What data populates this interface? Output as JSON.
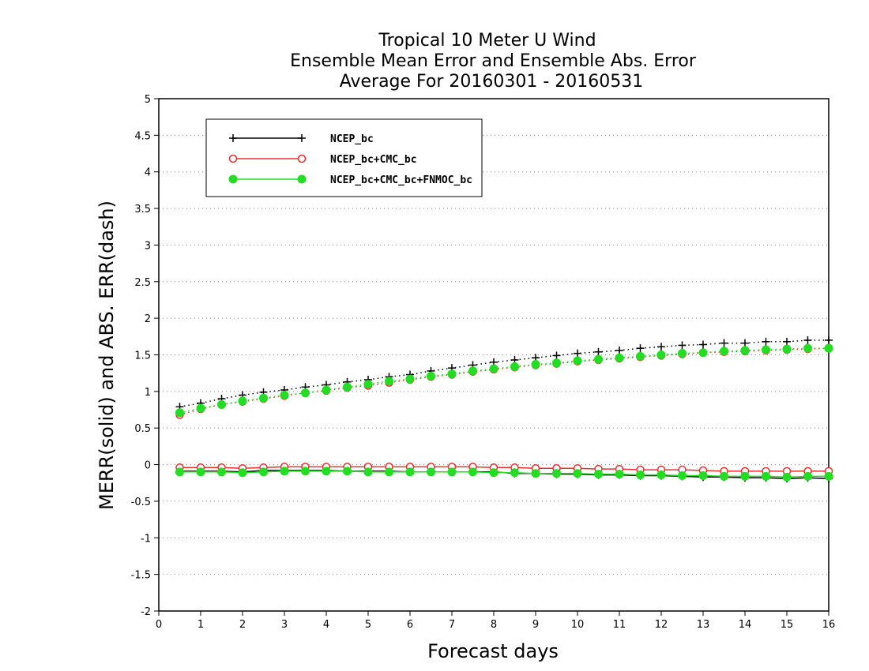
{
  "chart_data": {
    "type": "line",
    "title_lines": [
      "Tropical 10 Meter U Wind",
      "Ensemble Mean Error and Ensemble Abs. Error",
      "Average For 20160301 - 20160531"
    ],
    "xlabel": "Forecast days",
    "ylabel": "MERR(solid) and ABS. ERR(dash)",
    "xlim": [
      0,
      16
    ],
    "ylim": [
      -2,
      5
    ],
    "xticks": [
      0,
      1,
      2,
      3,
      4,
      5,
      6,
      7,
      8,
      9,
      10,
      11,
      12,
      13,
      14,
      15,
      16
    ],
    "xtick_labels": [
      "0",
      "1",
      "2",
      "3",
      "4",
      "5",
      "6",
      "7",
      "8",
      "9",
      "10",
      "11",
      "12",
      "13",
      "14",
      "15",
      "16"
    ],
    "yticks": [
      -2,
      -1.5,
      -1,
      -0.5,
      0,
      0.5,
      1,
      1.5,
      2,
      2.5,
      3,
      3.5,
      4,
      4.5,
      5
    ],
    "ytick_labels": [
      "-2",
      "-1.5",
      "-1",
      "-0.5",
      "0",
      "0.5",
      "1",
      "1.5",
      "2",
      "2.5",
      "3",
      "3.5",
      "4",
      "4.5",
      "5"
    ],
    "grid": "horizontal dotted",
    "legend_position": "top-left",
    "x": [
      0.5,
      1,
      1.5,
      2,
      2.5,
      3,
      3.5,
      4,
      4.5,
      5,
      5.5,
      6,
      6.5,
      7,
      7.5,
      8,
      8.5,
      9,
      9.5,
      10,
      10.5,
      11,
      11.5,
      12,
      12.5,
      13,
      13.5,
      14,
      14.5,
      15,
      15.5,
      16
    ],
    "series": [
      {
        "name": "NCEP_bc",
        "color": "#000000",
        "marker": "plus",
        "merr": [
          -0.09,
          -0.09,
          -0.09,
          -0.1,
          -0.08,
          -0.08,
          -0.08,
          -0.08,
          -0.09,
          -0.09,
          -0.09,
          -0.1,
          -0.1,
          -0.1,
          -0.1,
          -0.1,
          -0.12,
          -0.12,
          -0.13,
          -0.13,
          -0.14,
          -0.14,
          -0.15,
          -0.15,
          -0.16,
          -0.17,
          -0.17,
          -0.18,
          -0.18,
          -0.19,
          -0.18,
          -0.19
        ],
        "abs_err": [
          0.79,
          0.84,
          0.9,
          0.95,
          0.99,
          1.02,
          1.06,
          1.09,
          1.13,
          1.16,
          1.2,
          1.23,
          1.28,
          1.32,
          1.36,
          1.4,
          1.43,
          1.46,
          1.49,
          1.52,
          1.54,
          1.56,
          1.59,
          1.61,
          1.63,
          1.64,
          1.66,
          1.66,
          1.68,
          1.68,
          1.7,
          1.7
        ]
      },
      {
        "name": "NCEP_bc+CMC_bc",
        "color": "#e83030",
        "marker": "open-circle",
        "merr": [
          -0.04,
          -0.04,
          -0.04,
          -0.05,
          -0.04,
          -0.03,
          -0.03,
          -0.03,
          -0.03,
          -0.03,
          -0.03,
          -0.03,
          -0.03,
          -0.03,
          -0.03,
          -0.04,
          -0.04,
          -0.05,
          -0.05,
          -0.05,
          -0.06,
          -0.06,
          -0.07,
          -0.07,
          -0.07,
          -0.08,
          -0.09,
          -0.09,
          -0.09,
          -0.09,
          -0.09,
          -0.09
        ],
        "abs_err": [
          0.68,
          0.76,
          0.82,
          0.86,
          0.9,
          0.94,
          0.98,
          1.01,
          1.05,
          1.08,
          1.12,
          1.16,
          1.2,
          1.23,
          1.27,
          1.3,
          1.33,
          1.36,
          1.38,
          1.41,
          1.43,
          1.45,
          1.47,
          1.49,
          1.51,
          1.53,
          1.54,
          1.55,
          1.56,
          1.57,
          1.58,
          1.59
        ]
      },
      {
        "name": "NCEP_bc+CMC_bc+FNMOC_bc",
        "color": "#22dd22",
        "marker": "filled-circle",
        "merr": [
          -0.1,
          -0.1,
          -0.1,
          -0.11,
          -0.1,
          -0.09,
          -0.09,
          -0.09,
          -0.09,
          -0.1,
          -0.1,
          -0.1,
          -0.1,
          -0.1,
          -0.1,
          -0.11,
          -0.11,
          -0.12,
          -0.12,
          -0.12,
          -0.13,
          -0.13,
          -0.14,
          -0.14,
          -0.15,
          -0.15,
          -0.16,
          -0.16,
          -0.16,
          -0.17,
          -0.16,
          -0.16
        ],
        "abs_err": [
          0.71,
          0.77,
          0.82,
          0.87,
          0.91,
          0.95,
          0.98,
          1.02,
          1.06,
          1.1,
          1.14,
          1.17,
          1.21,
          1.24,
          1.28,
          1.31,
          1.34,
          1.37,
          1.39,
          1.42,
          1.44,
          1.46,
          1.48,
          1.5,
          1.52,
          1.53,
          1.55,
          1.56,
          1.57,
          1.58,
          1.59,
          1.59
        ]
      }
    ]
  }
}
